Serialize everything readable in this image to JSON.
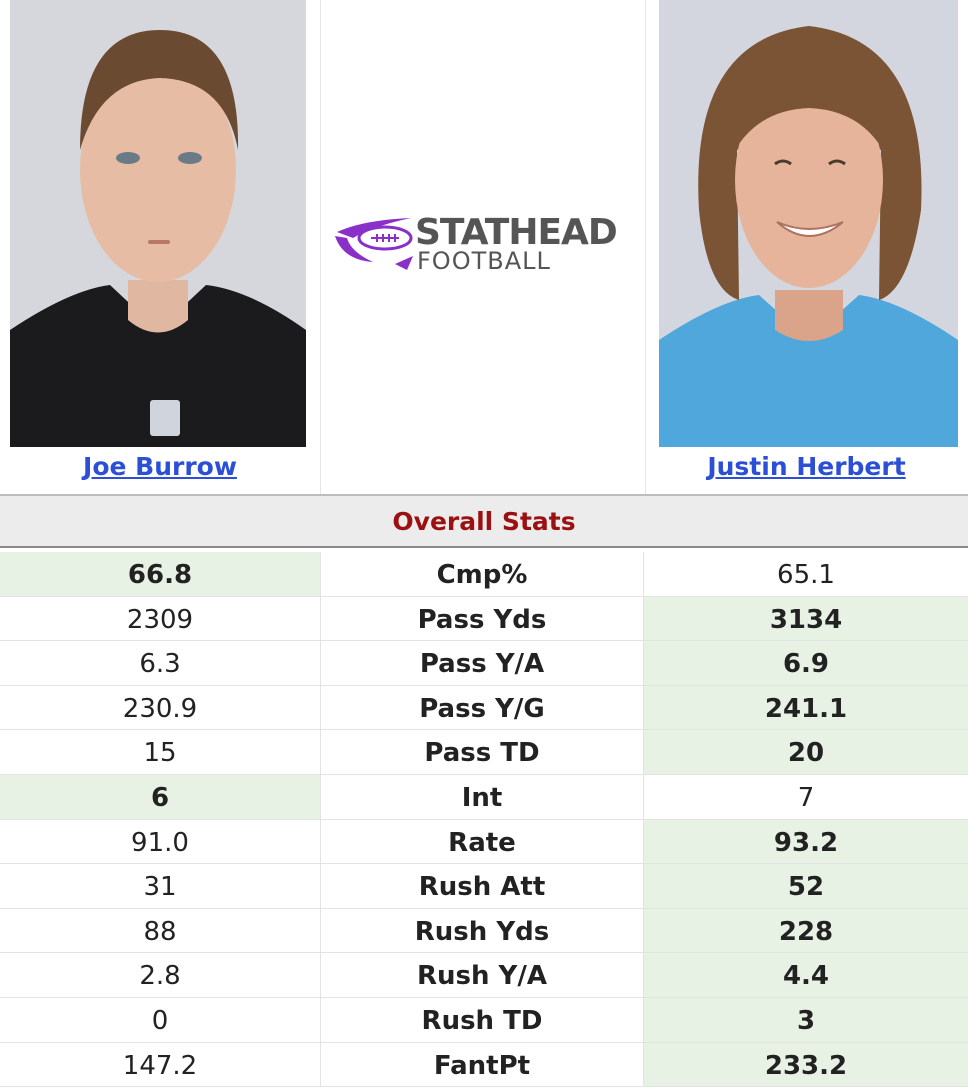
{
  "players": {
    "left": {
      "name": "Joe Burrow"
    },
    "right": {
      "name": "Justin Herbert"
    }
  },
  "logo": {
    "line1": "STATHEAD",
    "line2": "FOOTBALL",
    "accent_color": "#8b2fc9"
  },
  "section_title": "Overall Stats",
  "colors": {
    "winner_bg": "#e7f2e5",
    "link": "#2b4fd6",
    "title": "#9b1111"
  },
  "stats": [
    {
      "label": "Cmp%",
      "left": "66.8",
      "right": "65.1",
      "winner": "left"
    },
    {
      "label": "Pass Yds",
      "left": "2309",
      "right": "3134",
      "winner": "right"
    },
    {
      "label": "Pass Y/A",
      "left": "6.3",
      "right": "6.9",
      "winner": "right"
    },
    {
      "label": "Pass Y/G",
      "left": "230.9",
      "right": "241.1",
      "winner": "right"
    },
    {
      "label": "Pass TD",
      "left": "15",
      "right": "20",
      "winner": "right"
    },
    {
      "label": "Int",
      "left": "6",
      "right": "7",
      "winner": "left"
    },
    {
      "label": "Rate",
      "left": "91.0",
      "right": "93.2",
      "winner": "right"
    },
    {
      "label": "Rush Att",
      "left": "31",
      "right": "52",
      "winner": "right"
    },
    {
      "label": "Rush Yds",
      "left": "88",
      "right": "228",
      "winner": "right"
    },
    {
      "label": "Rush Y/A",
      "left": "2.8",
      "right": "4.4",
      "winner": "right"
    },
    {
      "label": "Rush TD",
      "left": "0",
      "right": "3",
      "winner": "right"
    },
    {
      "label": "FantPt",
      "left": "147.2",
      "right": "233.2",
      "winner": "right"
    }
  ]
}
